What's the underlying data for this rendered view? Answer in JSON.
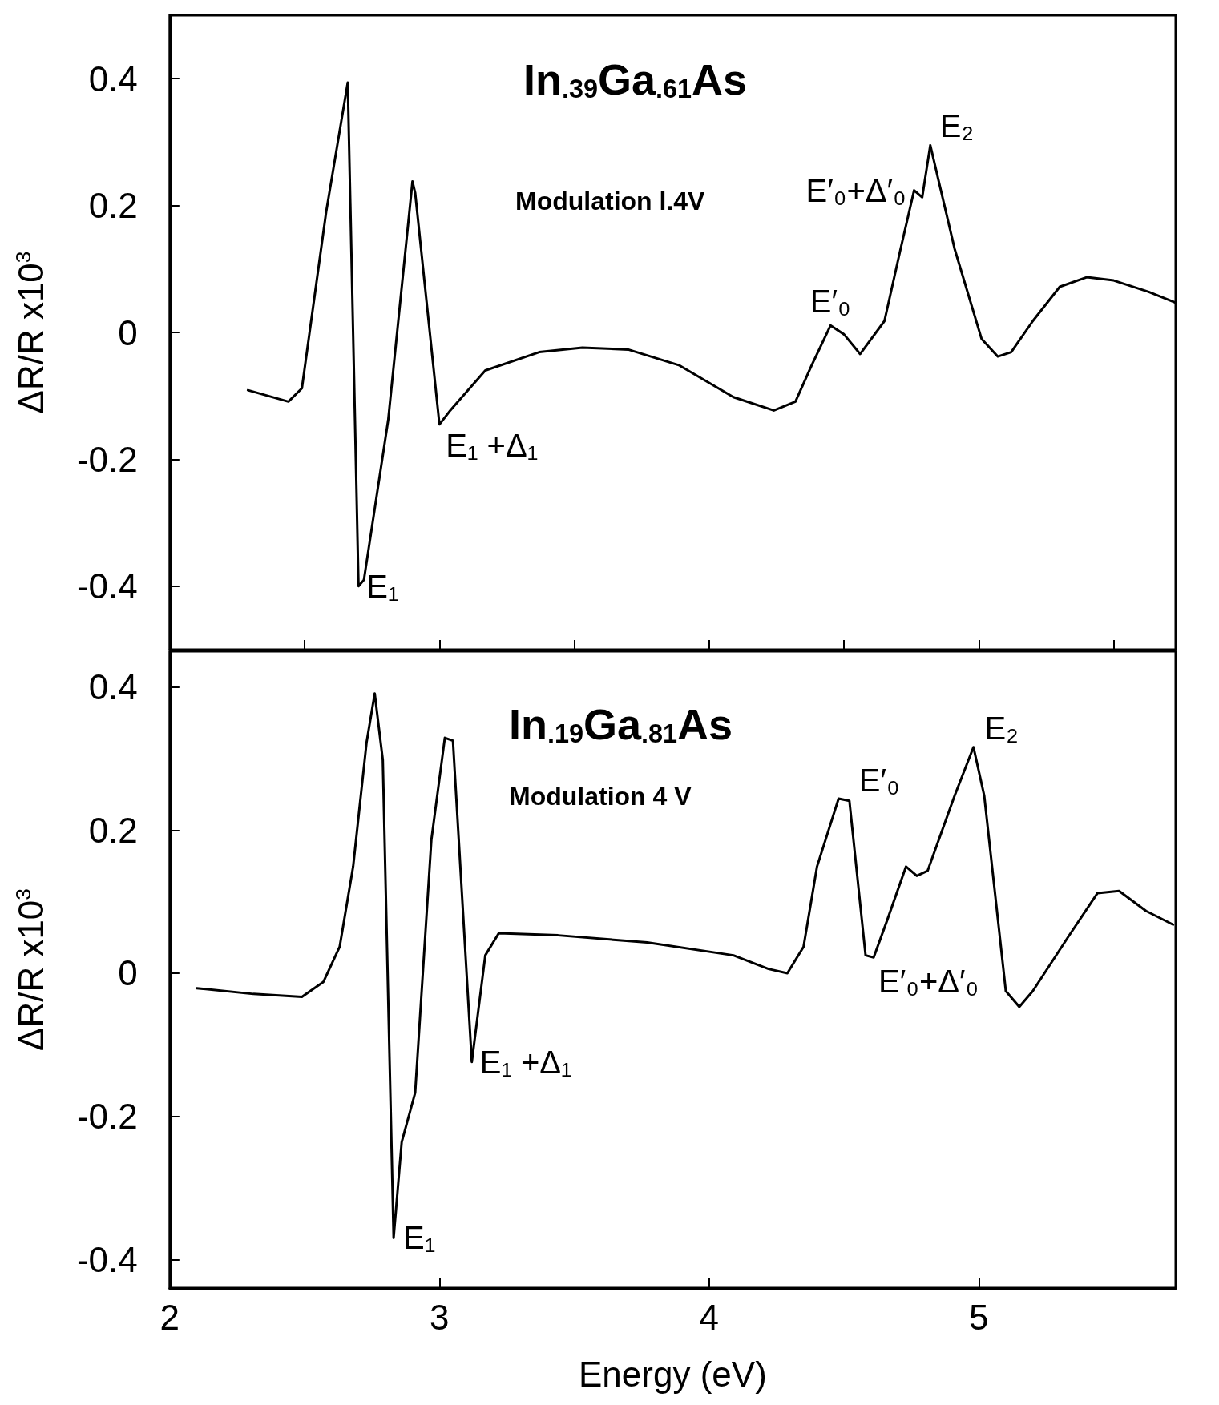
{
  "chart_data": [
    {
      "type": "line",
      "title": "In$_{.39}$Ga$_{.61}$As",
      "subtitle": "Modulation l.4V",
      "ylabel": "ΔR/R x10$^{3}$",
      "xlim": [
        2,
        5.73
      ],
      "ylim": [
        -0.5,
        0.5
      ],
      "xticks": [
        2.5,
        3,
        3.5,
        4,
        4.5,
        5,
        5.5
      ],
      "yticks": [
        -0.4,
        -0.2,
        0,
        0.2,
        0.4
      ],
      "tick_labels": "y",
      "grid": false,
      "marker": "none",
      "line_style": "solid",
      "x": [
        2.29,
        2.44,
        2.49,
        2.58,
        2.66,
        2.7,
        2.72,
        2.81,
        2.9,
        2.91,
        3.0,
        3.04,
        3.17,
        3.37,
        3.53,
        3.7,
        3.89,
        4.09,
        4.24,
        4.32,
        4.38,
        4.45,
        4.5,
        4.56,
        4.65,
        4.71,
        4.76,
        4.79,
        4.82,
        4.91,
        5.01,
        5.07,
        5.12,
        5.2,
        5.3,
        5.4,
        5.5,
        5.63,
        5.73
      ],
      "series": [
        {
          "color": "#000000",
          "values": [
            -0.091,
            -0.109,
            -0.088,
            0.19,
            0.394,
            -0.4,
            -0.39,
            -0.138,
            0.238,
            0.22,
            -0.145,
            -0.123,
            -0.06,
            -0.031,
            -0.024,
            -0.027,
            -0.052,
            -0.102,
            -0.123,
            -0.109,
            -0.052,
            0.011,
            -0.003,
            -0.034,
            0.018,
            0.132,
            0.224,
            0.213,
            0.295,
            0.132,
            -0.01,
            -0.038,
            -0.031,
            0.018,
            0.072,
            0.087,
            0.082,
            0.064,
            0.047
          ]
        }
      ],
      "annotations": [
        {
          "text": "E₁",
          "x": 2.7,
          "y": -0.4
        },
        {
          "text": "E₁ +Δ₁",
          "x": 3.0,
          "y": -0.145
        },
        {
          "text": "E′₀",
          "x": 4.45,
          "y": 0.011
        },
        {
          "text": "E′₀+Δ′₀",
          "x": 4.76,
          "y": 0.224
        },
        {
          "text": "E₂",
          "x": 4.82,
          "y": 0.295
        }
      ]
    },
    {
      "type": "line",
      "title": "In$_{.19}$Ga$_{.81}$As",
      "subtitle": "Modulation 4 V",
      "xlabel": "Energy (eV)",
      "ylabel": "ΔR/R x10$^{3}$",
      "xlim": [
        2,
        5.73
      ],
      "ylim": [
        -0.44,
        0.45
      ],
      "xticks": [
        2,
        3,
        4,
        5
      ],
      "yticks": [
        -0.4,
        -0.2,
        0,
        0.2,
        0.4
      ],
      "grid": false,
      "marker": "none",
      "line_style": "solid",
      "x": [
        2.1,
        2.31,
        2.49,
        2.57,
        2.63,
        2.68,
        2.73,
        2.76,
        2.79,
        2.83,
        2.86,
        2.91,
        2.97,
        3.02,
        3.05,
        3.12,
        3.17,
        3.22,
        3.44,
        3.77,
        4.09,
        4.22,
        4.29,
        4.35,
        4.4,
        4.48,
        4.52,
        4.58,
        4.61,
        4.66,
        4.73,
        4.77,
        4.81,
        4.91,
        4.98,
        5.02,
        5.1,
        5.15,
        5.2,
        5.33,
        5.44,
        5.52,
        5.62,
        5.72
      ],
      "series": [
        {
          "color": "#000000",
          "values": [
            -0.021,
            -0.029,
            -0.033,
            -0.012,
            0.037,
            0.149,
            0.323,
            0.391,
            0.298,
            -0.37,
            -0.236,
            -0.167,
            0.186,
            0.329,
            0.325,
            -0.124,
            0.025,
            0.056,
            0.053,
            0.043,
            0.025,
            0.006,
            0,
            0.037,
            0.149,
            0.244,
            0.241,
            0.025,
            0.022,
            0.074,
            0.149,
            0.136,
            0.143,
            0.248,
            0.316,
            0.248,
            -0.025,
            -0.047,
            -0.025,
            0.05,
            0.112,
            0.115,
            0.087,
            0.068
          ]
        }
      ],
      "annotations": [
        {
          "text": "E₁",
          "x": 2.83,
          "y": -0.37
        },
        {
          "text": "E₁ +Δ₁",
          "x": 3.12,
          "y": -0.124
        },
        {
          "text": "E′₀",
          "x": 4.52,
          "y": 0.241
        },
        {
          "text": "E′₀+Δ′₀",
          "x": 4.61,
          "y": 0.022
        },
        {
          "text": "E₂",
          "x": 4.98,
          "y": 0.316
        }
      ]
    }
  ]
}
